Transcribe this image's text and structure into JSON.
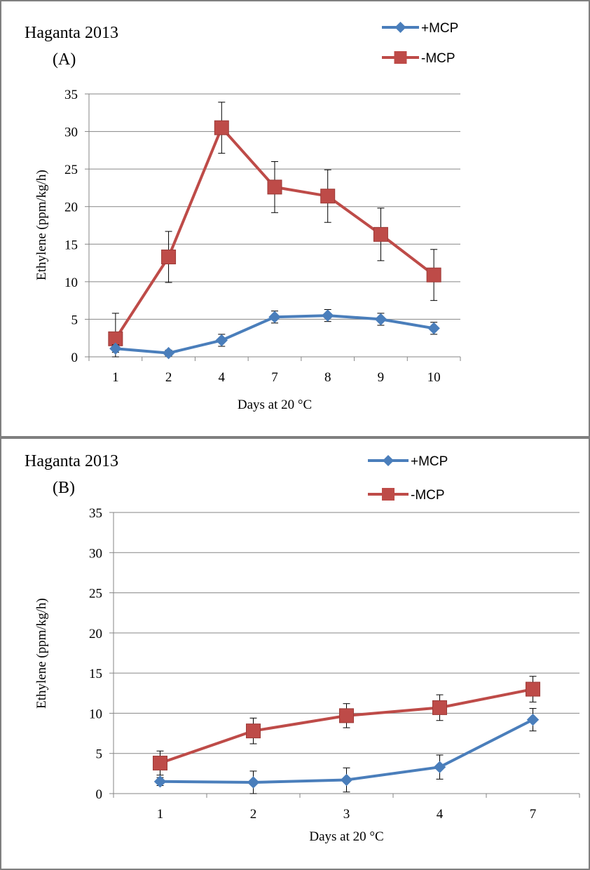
{
  "chart_data": [
    {
      "type": "line",
      "title": "Haganta 2013",
      "subtitle": "(A)",
      "xlabel": "Days at 20 °C",
      "ylabel": "Ethylene (ppm/kg/h)",
      "ylim": [
        0,
        35
      ],
      "yticks": [
        "0",
        "5",
        "10",
        "15",
        "20",
        "25",
        "30",
        "35"
      ],
      "categories": [
        "1",
        "2",
        "4",
        "7",
        "8",
        "9",
        "10"
      ],
      "grid": "horizontal",
      "legend": "top-right",
      "series": [
        {
          "name": "+MCP",
          "color": "#4a7ebb",
          "marker": "diamond",
          "values": [
            1.1,
            0.5,
            2.2,
            5.3,
            5.5,
            5.0,
            3.8
          ],
          "errors": [
            0.5,
            0.4,
            0.8,
            0.8,
            0.8,
            0.8,
            0.8
          ]
        },
        {
          "name": "-MCP",
          "color": "#be4b48",
          "marker": "square",
          "values": [
            2.4,
            13.3,
            30.5,
            22.6,
            21.4,
            16.3,
            10.9
          ],
          "errors": [
            3.4,
            3.4,
            3.4,
            3.4,
            3.5,
            3.5,
            3.4
          ]
        }
      ]
    },
    {
      "type": "line",
      "title": "Haganta 2013",
      "subtitle": "(B)",
      "xlabel": "Days at 20 °C",
      "ylabel": "Ethylene (ppm/kg/h)",
      "ylim": [
        0,
        35
      ],
      "yticks": [
        "0",
        "5",
        "10",
        "15",
        "20",
        "25",
        "30",
        "35"
      ],
      "categories": [
        "1",
        "2",
        "3",
        "4",
        "7"
      ],
      "grid": "horizontal",
      "legend": "top-right",
      "series": [
        {
          "name": "+MCP",
          "color": "#4a7ebb",
          "marker": "diamond",
          "values": [
            1.5,
            1.4,
            1.7,
            3.3,
            9.2
          ],
          "errors": [
            0.5,
            1.4,
            1.5,
            1.5,
            1.4
          ]
        },
        {
          "name": "-MCP",
          "color": "#be4b48",
          "marker": "square",
          "values": [
            3.8,
            7.8,
            9.7,
            10.7,
            13.0
          ],
          "errors": [
            1.5,
            1.6,
            1.5,
            1.6,
            1.6
          ]
        }
      ]
    }
  ]
}
